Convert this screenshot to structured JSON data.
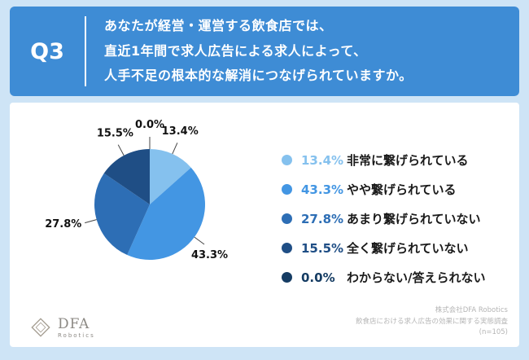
{
  "header": {
    "q_label": "Q3",
    "question_lines": [
      "あなたが経営・運営する飲食店では、",
      "直近1年間で求人広告による求人によって、",
      "人手不足の根本的な解消につなげられていますか。"
    ]
  },
  "chart_data": {
    "type": "pie",
    "labels": [
      "非常に繋げられている",
      "やや繋げられている",
      "あまり繋げられていない",
      "全く繋げられていない",
      "わからない/答えられない"
    ],
    "values": [
      13.4,
      43.3,
      27.8,
      15.5,
      0.0
    ],
    "percent_labels": [
      "13.4%",
      "43.3%",
      "27.8%",
      "15.5%",
      "0.0%"
    ],
    "colors": [
      "#85C1EE",
      "#4396E3",
      "#2D6EB5",
      "#1F4E85",
      "#153C63"
    ],
    "legend_position": "right",
    "start_angle_deg": -90,
    "direction": "clockwise"
  },
  "footer": {
    "logo": {
      "text": "DFA",
      "subtext": "Robotics"
    },
    "credit_lines": [
      "株式会社DFA Robotics",
      "飲食店における求人広告の効果に関する実態調査",
      "(n=105)"
    ]
  },
  "colors": {
    "background": "#CEE4F6",
    "header_bg": "#3E8CD5",
    "card_bg": "#FFFFFF"
  }
}
